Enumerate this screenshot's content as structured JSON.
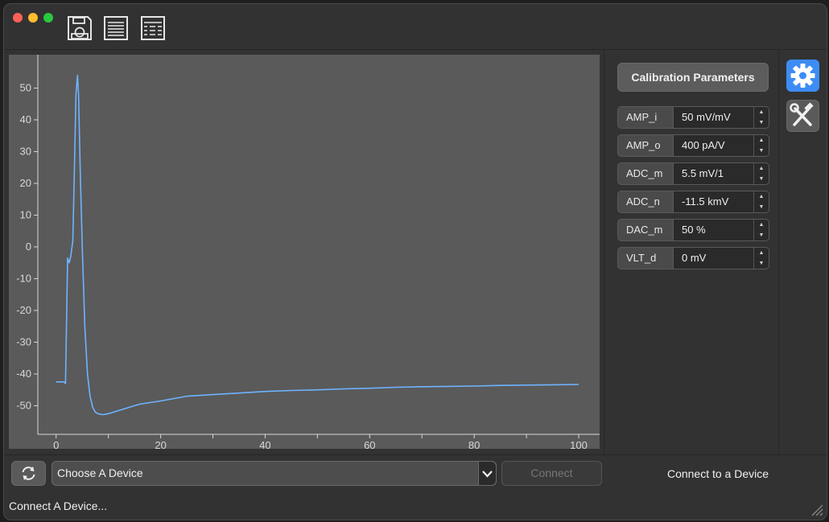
{
  "window": {
    "controls": {
      "close": "close",
      "minimize": "minimize",
      "maximize": "maximize"
    },
    "colors": {
      "close": "#fe5f57",
      "minimize": "#febc2e",
      "maximize": "#28c840",
      "accent": "#3d8cf5",
      "trace": "#6fb3ff"
    }
  },
  "toolbar": {
    "icons": [
      "save-icon",
      "list-icon",
      "table-icon"
    ]
  },
  "chart_data": {
    "type": "line",
    "title": "",
    "xlabel": "",
    "ylabel": "",
    "xlim": [
      -3.5,
      104
    ],
    "ylim": [
      -59,
      60.5
    ],
    "xticks": [
      0,
      20,
      40,
      60,
      80,
      100
    ],
    "yticks": [
      50,
      40,
      30,
      20,
      10,
      0,
      -10,
      -20,
      -30,
      -40,
      -50
    ],
    "grid": false,
    "series": [
      {
        "color": "#6fb3ff",
        "x": [
          0,
          1.5,
          1.8,
          2.2,
          2.5,
          2.8,
          3.2,
          3.5,
          3.8,
          4.1,
          4.3,
          4.6,
          5.0,
          5.5,
          6.0,
          6.5,
          7.0,
          7.5,
          8.0,
          8.5,
          9.0,
          10,
          11,
          12,
          14,
          16,
          18,
          20,
          25,
          30,
          35,
          40,
          45,
          50,
          55,
          60,
          65,
          70,
          75,
          80,
          85,
          90,
          95,
          100
        ],
        "y": [
          -42.5,
          -42.5,
          -43,
          -3.5,
          -5,
          -3,
          2,
          25,
          48,
          54,
          48,
          25,
          0,
          -25,
          -40,
          -47,
          -50.5,
          -52,
          -52.5,
          -52.7,
          -52.8,
          -52.5,
          -52,
          -51.5,
          -50.5,
          -49.5,
          -49,
          -48.5,
          -47,
          -46.5,
          -46,
          -45.5,
          -45.2,
          -45,
          -44.7,
          -44.5,
          -44.2,
          -44,
          -43.9,
          -43.8,
          -43.6,
          -43.5,
          -43.4,
          -43.3
        ]
      }
    ]
  },
  "calibration": {
    "button_label": "Calibration Parameters",
    "params": [
      {
        "label": "AMP_i",
        "value": "50 mV/mV"
      },
      {
        "label": "AMP_o",
        "value": "400 pA/V"
      },
      {
        "label": "ADC_m",
        "value": "5.5 mV/1"
      },
      {
        "label": "ADC_n",
        "value": "-11.5 kmV"
      },
      {
        "label": "DAC_m",
        "value": "50 %"
      },
      {
        "label": "VLT_d",
        "value": "0 mV"
      }
    ]
  },
  "sidebar": {
    "items": [
      "gear-icon",
      "tools-icon"
    ]
  },
  "bottom": {
    "device_select": "Choose A Device",
    "connect_label": "Connect",
    "connect_status": "Connect to a Device"
  },
  "status_bar": {
    "text": "Connect A Device..."
  }
}
